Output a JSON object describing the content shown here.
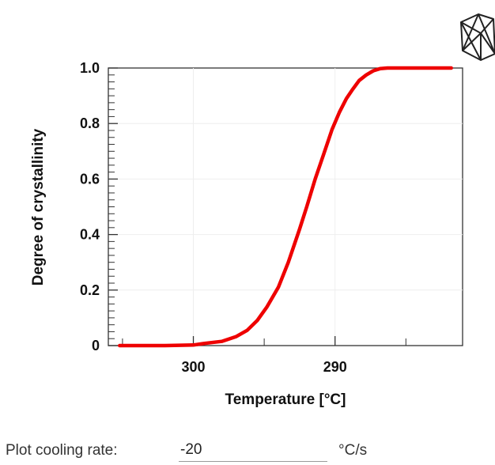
{
  "chart_data": {
    "type": "line",
    "xlabel": "Temperature [°C]",
    "ylabel": "Degree of crystallinity",
    "xlim": [
      306,
      281
    ],
    "ylim": [
      0,
      1
    ],
    "x_reversed": true,
    "x_ticks": [
      300,
      290
    ],
    "y_ticks": [
      0,
      0.2,
      0.4,
      0.6,
      0.8,
      1.0
    ],
    "y_tick_labels": [
      "0",
      "0.2",
      "0.4",
      "0.6",
      "0.8",
      "1.0"
    ],
    "grid": true,
    "series": [
      {
        "color": "#ee0000",
        "x": [
          305.2,
          302.0,
          300.0,
          299.2,
          298.0,
          297.0,
          296.2,
          295.5,
          294.8,
          294.0,
          293.3,
          292.5,
          292.0,
          291.4,
          290.8,
          290.2,
          289.7,
          289.2,
          288.8,
          288.3,
          287.8,
          287.3,
          286.8,
          286.3,
          285.0,
          281.8
        ],
        "y": [
          0.0,
          0.0,
          0.002,
          0.008,
          0.015,
          0.032,
          0.055,
          0.09,
          0.14,
          0.21,
          0.3,
          0.42,
          0.5,
          0.6,
          0.69,
          0.78,
          0.84,
          0.89,
          0.92,
          0.955,
          0.975,
          0.99,
          0.998,
          1.0,
          1.0,
          1.0
        ]
      }
    ]
  },
  "logo": {
    "icon": "wireframe-cube-logo"
  },
  "controls": {
    "cooling_rate_label": "Plot cooling rate:",
    "cooling_rate_value": "-20",
    "cooling_rate_unit": "°C/s"
  }
}
